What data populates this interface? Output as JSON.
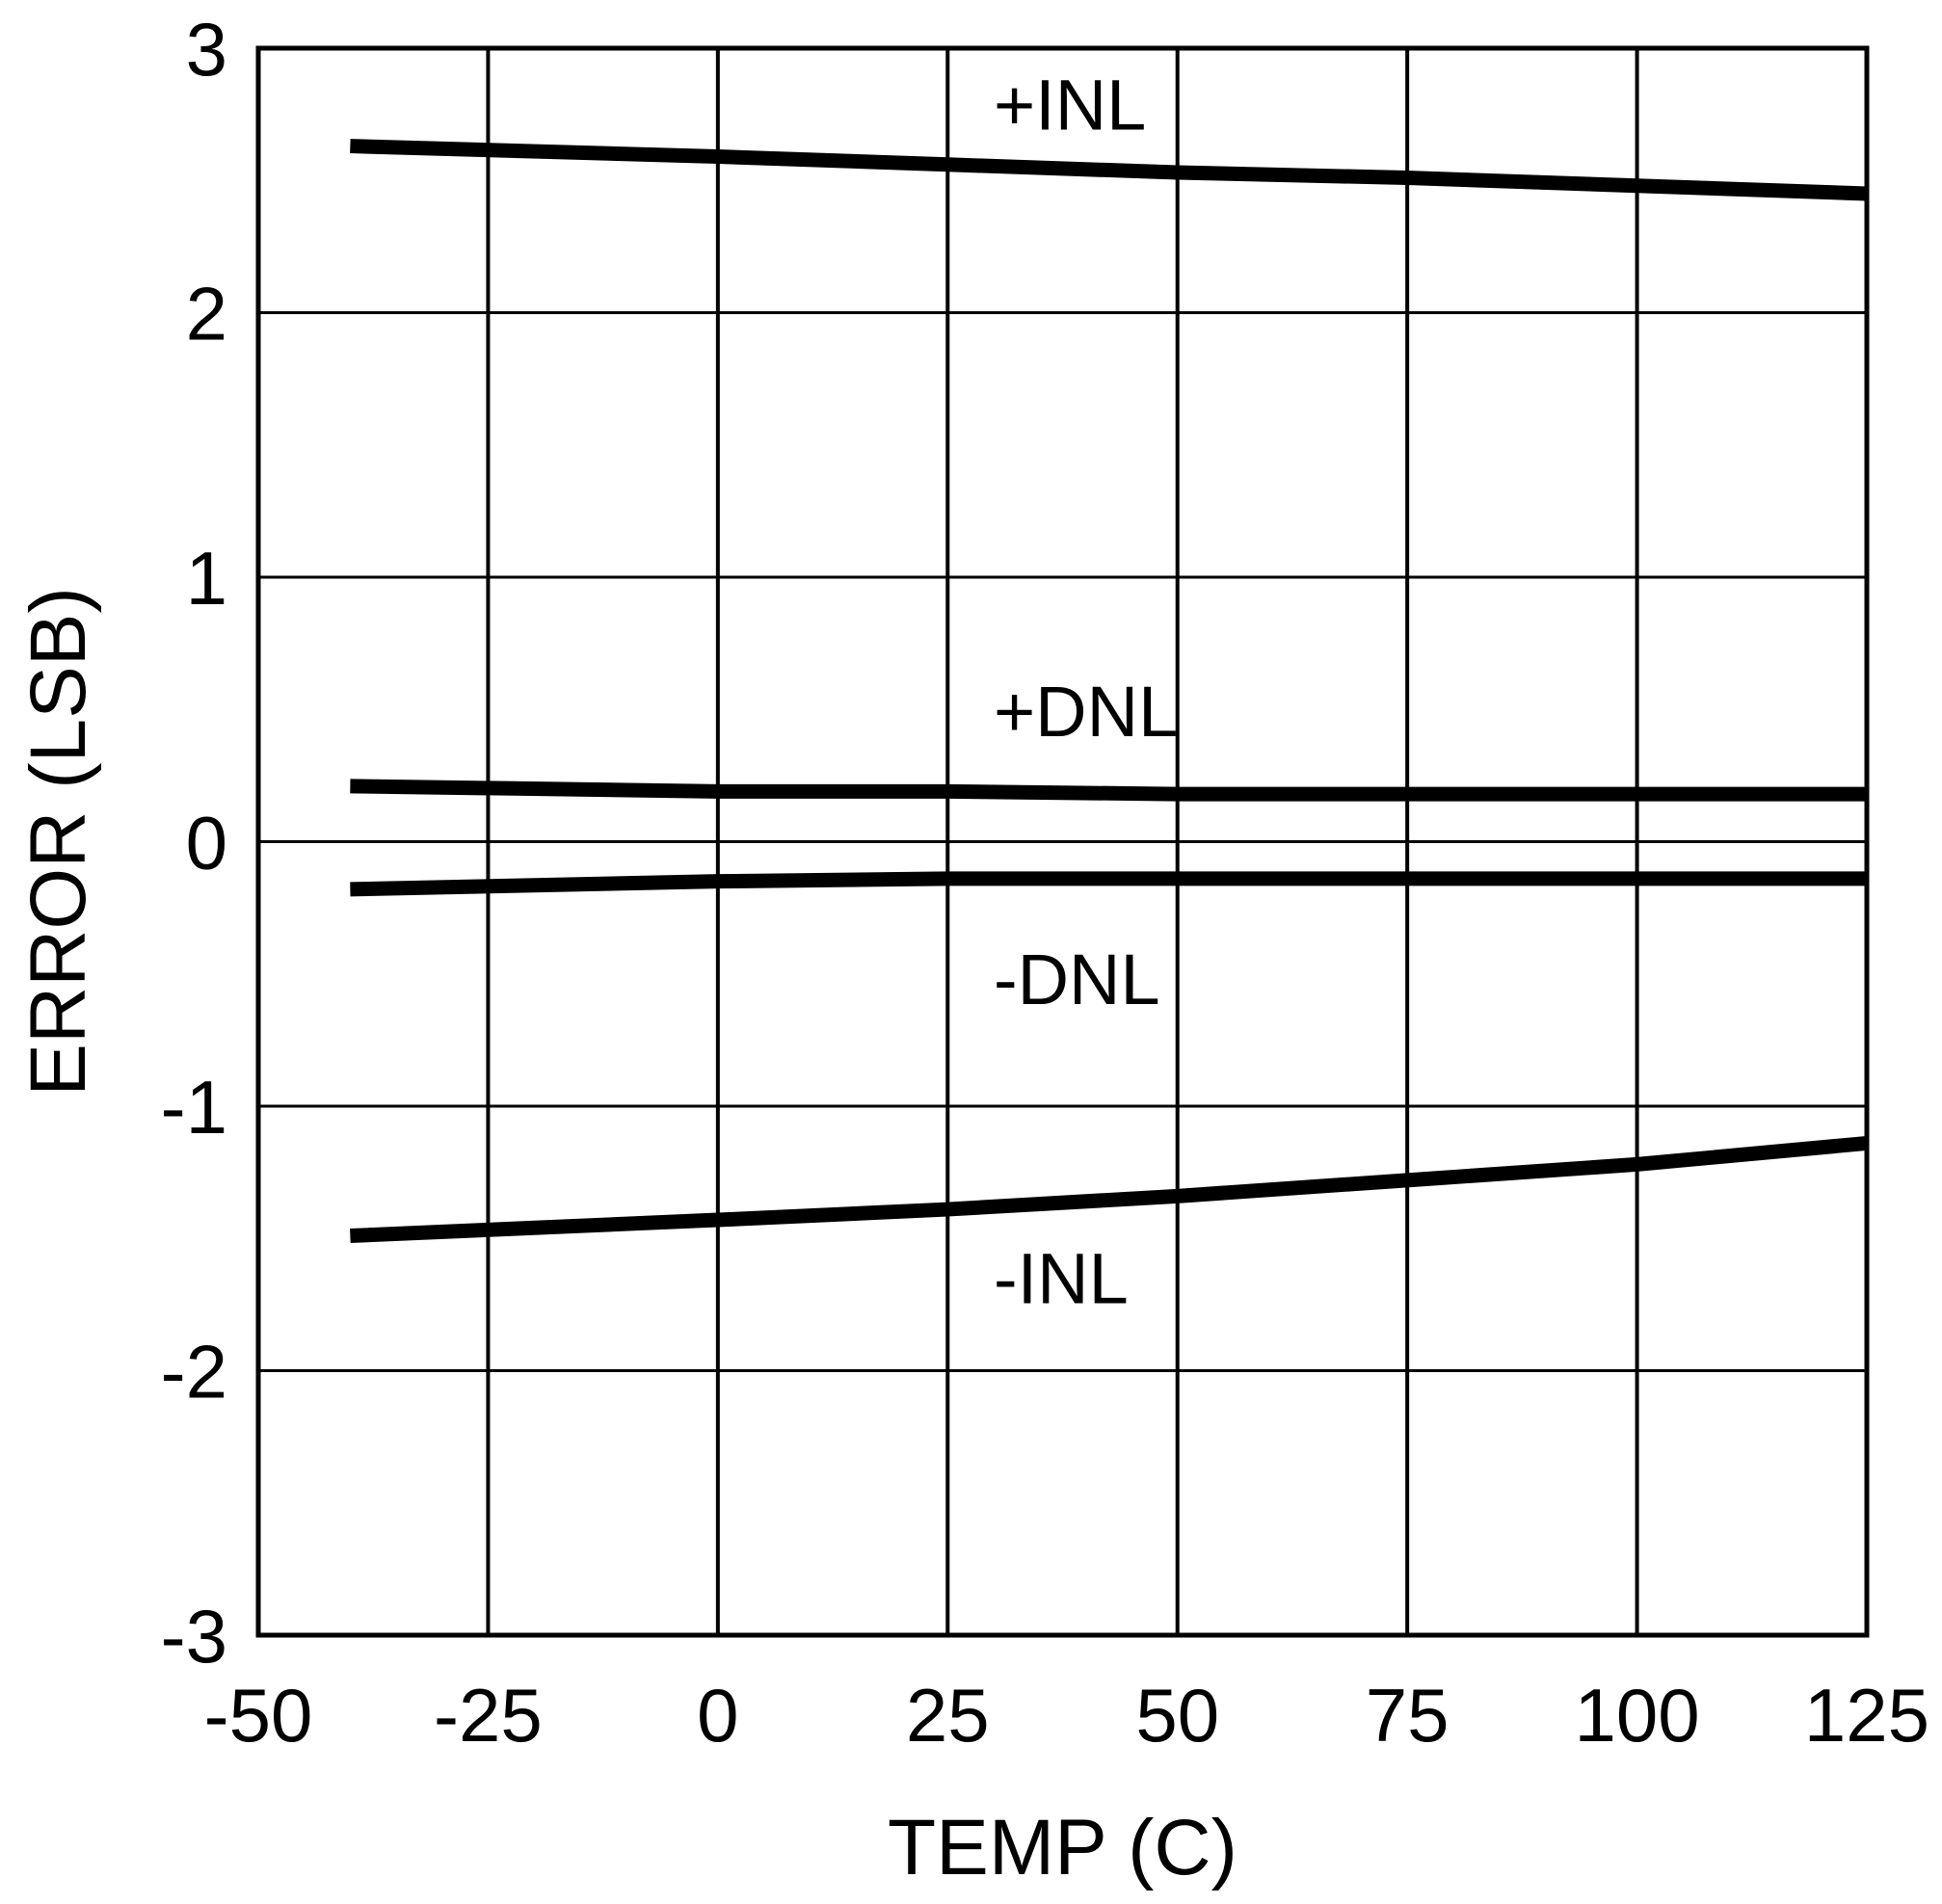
{
  "chart_data": {
    "type": "line",
    "xlabel": "TEMP (C)",
    "ylabel": "ERROR (LSB)",
    "xlim": [
      -50,
      125
    ],
    "ylim": [
      -3,
      3
    ],
    "xticks": [
      "-50",
      "-25",
      "0",
      "25",
      "50",
      "75",
      "100",
      "125"
    ],
    "yticks": [
      "-3",
      "-2",
      "-1",
      "0",
      "1",
      "2",
      "3"
    ],
    "grid": true,
    "line_color": "#000000",
    "series": [
      {
        "name": "+INL",
        "x": [
          -40,
          0,
          25,
          50,
          75,
          100,
          125
        ],
        "y": [
          2.63,
          2.59,
          2.56,
          2.53,
          2.51,
          2.48,
          2.45
        ]
      },
      {
        "name": "+DNL",
        "x": [
          -40,
          0,
          25,
          50,
          75,
          100,
          125
        ],
        "y": [
          0.21,
          0.19,
          0.19,
          0.18,
          0.18,
          0.18,
          0.18
        ]
      },
      {
        "name": "-DNL",
        "x": [
          -40,
          0,
          25,
          50,
          75,
          100,
          125
        ],
        "y": [
          -0.18,
          -0.15,
          -0.14,
          -0.14,
          -0.14,
          -0.14,
          -0.14
        ]
      },
      {
        "name": "-INL",
        "x": [
          -40,
          0,
          25,
          50,
          75,
          100,
          125
        ],
        "y": [
          -1.49,
          -1.43,
          -1.39,
          -1.34,
          -1.28,
          -1.22,
          -1.14
        ]
      }
    ]
  }
}
